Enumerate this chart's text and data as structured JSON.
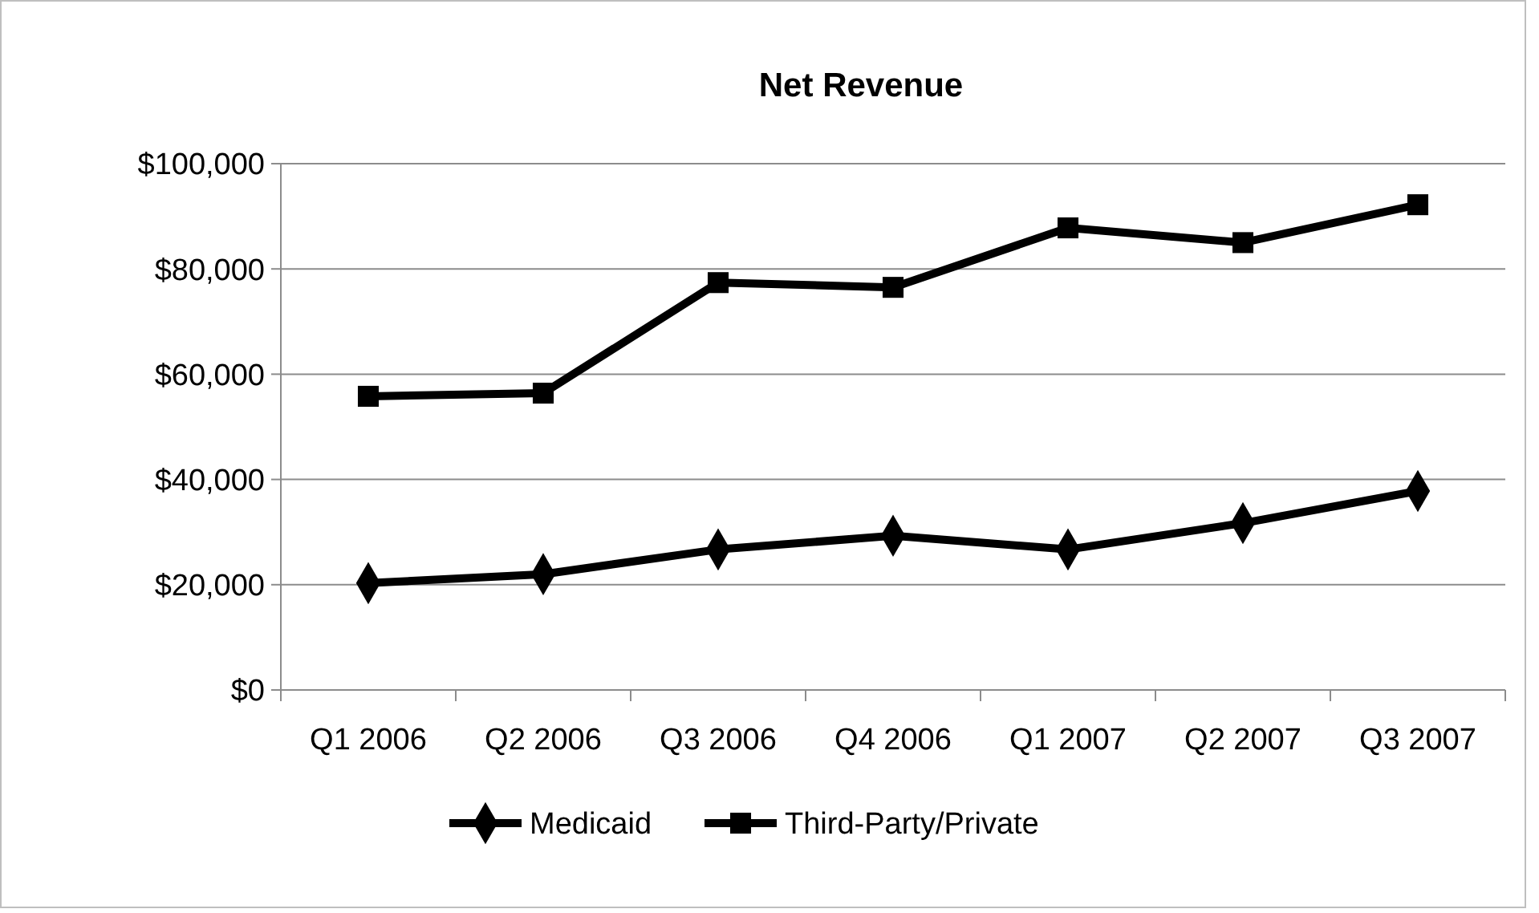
{
  "chart_data": {
    "type": "line",
    "title": "Net Revenue",
    "categories": [
      "Q1 2006",
      "Q2 2006",
      "Q3 2006",
      "Q4 2006",
      "Q1 2007",
      "Q2 2007",
      "Q3 2007"
    ],
    "series": [
      {
        "name": "Medicaid",
        "color": "#000000",
        "marker": "diamond",
        "values": [
          20300,
          22000,
          26700,
          29300,
          26700,
          31700,
          37800
        ]
      },
      {
        "name": "Third-Party/Private",
        "color": "#000000",
        "marker": "square",
        "values": [
          55800,
          56400,
          77400,
          76500,
          87800,
          85000,
          92200
        ]
      }
    ],
    "ylim": [
      0,
      100000
    ],
    "yticks": [
      {
        "value": 0,
        "label": "$0"
      },
      {
        "value": 20000,
        "label": "$20,000"
      },
      {
        "value": 40000,
        "label": "$40,000"
      },
      {
        "value": 60000,
        "label": "$60,000"
      },
      {
        "value": 80000,
        "label": "$80,000"
      },
      {
        "value": 100000,
        "label": "$100,000"
      }
    ],
    "grid": "y",
    "legend": "bottom",
    "line_style": "solid"
  }
}
